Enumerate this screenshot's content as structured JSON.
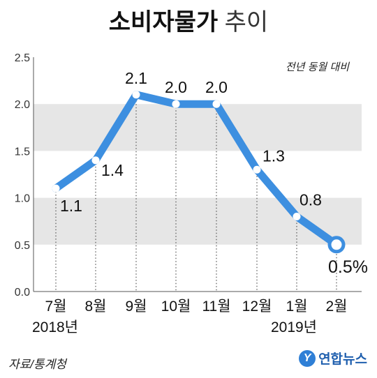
{
  "header": {
    "title_bold": "소비자물가",
    "title_light": "추이"
  },
  "chart_data": {
    "type": "line",
    "title": "소비자물가 추이",
    "annotation": "전년 동월 대비",
    "categories": [
      "7월",
      "8월",
      "9월",
      "10월",
      "11월",
      "12월",
      "1월",
      "2월"
    ],
    "year_labels": [
      {
        "category": "7월",
        "label": "2018년"
      },
      {
        "category": "1월",
        "label": "2019년"
      }
    ],
    "series": [
      {
        "values": [
          1.1,
          1.4,
          2.1,
          2.0,
          2.0,
          1.3,
          0.8,
          0.5
        ],
        "data_labels": [
          "1.1",
          "1.4",
          "2.1",
          "2.0",
          "2.0",
          "1.3",
          "0.8",
          "0.5%"
        ]
      }
    ],
    "ylim": [
      0,
      2.5
    ],
    "yticks": [
      "0.0",
      "0.5",
      "1.0",
      "1.5",
      "2.0",
      "2.5"
    ],
    "grid": true,
    "line_color": "#3d8fe0",
    "band_color": "#e6e6e6"
  },
  "footer": {
    "source": "자료/통계청",
    "brand_mark": "Y",
    "brand": "연합뉴스"
  }
}
